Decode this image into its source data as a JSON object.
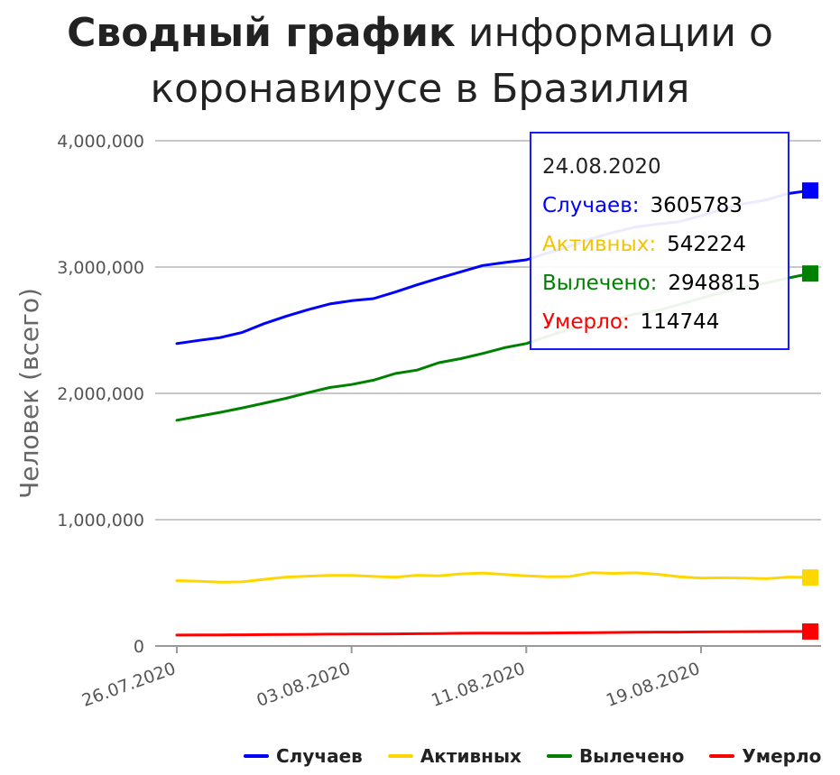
{
  "title": {
    "bold": "Сводный график",
    "rest": "информации о коронавирусе в Бразилия"
  },
  "chart_data": {
    "type": "line",
    "ylabel": "Человек (всего)",
    "ylim": [
      0,
      4000000
    ],
    "yticks": [
      "0",
      "1,000,000",
      "2,000,000",
      "3,000,000",
      "4,000,000"
    ],
    "ytick_values": [
      0,
      1000000,
      2000000,
      3000000,
      4000000
    ],
    "x_tick_labels": [
      "26.07.2020",
      "03.08.2020",
      "11.08.2020",
      "19.08.2020"
    ],
    "x_tick_indices": [
      0,
      8,
      16,
      24
    ],
    "x": [
      "26.07.2020",
      "27.07.2020",
      "28.07.2020",
      "29.07.2020",
      "30.07.2020",
      "31.07.2020",
      "01.08.2020",
      "02.08.2020",
      "03.08.2020",
      "04.08.2020",
      "05.08.2020",
      "06.08.2020",
      "07.08.2020",
      "08.08.2020",
      "09.08.2020",
      "10.08.2020",
      "11.08.2020",
      "12.08.2020",
      "13.08.2020",
      "14.08.2020",
      "15.08.2020",
      "16.08.2020",
      "17.08.2020",
      "18.08.2020",
      "19.08.2020",
      "20.08.2020",
      "21.08.2020",
      "22.08.2020",
      "23.08.2020",
      "24.08.2020"
    ],
    "grid": true,
    "legend_position": "bottom",
    "series": [
      {
        "name": "Случаев",
        "color": "#0000ff",
        "values": [
          2394513,
          2419091,
          2442375,
          2483191,
          2552265,
          2610102,
          2662485,
          2707877,
          2733677,
          2750318,
          2801921,
          2859073,
          2912212,
          2962442,
          3012412,
          3035422,
          3057470,
          3112393,
          3164785,
          3224876,
          3275520,
          3317096,
          3340197,
          3359570,
          3407354,
          3456652,
          3501975,
          3532330,
          3582362,
          3605783
        ]
      },
      {
        "name": "Активных",
        "color": "#ffd700",
        "values": [
          518000,
          512000,
          505000,
          508000,
          528000,
          546000,
          553000,
          559000,
          559000,
          551000,
          545000,
          560000,
          556000,
          571000,
          578000,
          566000,
          555000,
          548000,
          550000,
          581000,
          575000,
          579000,
          568000,
          548000,
          538000,
          540000,
          538000,
          533000,
          546000,
          542224
        ]
      },
      {
        "name": "Вылечено",
        "color": "#008000",
        "values": [
          1787419,
          1818646,
          1849877,
          1885031,
          1921977,
          1961048,
          2005184,
          2046733,
          2069672,
          2104549,
          2156977,
          2184564,
          2243124,
          2275003,
          2315580,
          2361564,
          2394127,
          2453004,
          2508509,
          2538059,
          2584558,
          2628582,
          2655017,
          2703120,
          2753140,
          2799918,
          2846315,
          2873611,
          2913542,
          2948815
        ]
      },
      {
        "name": "Умерло",
        "color": "#ff0000",
        "values": [
          86449,
          87004,
          87618,
          88539,
          90134,
          91263,
          92475,
          93563,
          94104,
          94665,
          95819,
          97256,
          98644,
          100477,
          101752,
          101857,
          102088,
          103026,
          104201,
          105463,
          107232,
          108536,
          109888,
          110019,
          111100,
          112304,
          113358,
          114250,
          114744,
          114744
        ]
      }
    ]
  },
  "tooltip": {
    "date": "24.08.2020",
    "rows": [
      {
        "label": "Случаев:",
        "value": "3605783",
        "color": "#0000ff"
      },
      {
        "label": "Активных:",
        "value": "542224",
        "color": "#f2c500"
      },
      {
        "label": "Вылечено:",
        "value": "2948815",
        "color": "#008000"
      },
      {
        "label": "Умерло:",
        "value": "114744",
        "color": "#ff0000"
      }
    ]
  }
}
